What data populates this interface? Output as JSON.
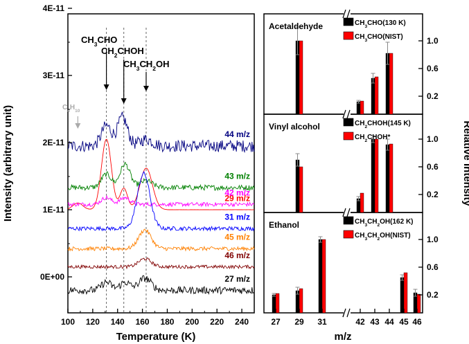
{
  "chart_data": [
    {
      "type": "line",
      "xlabel": "Temperature (K)",
      "ylabel": "Intensity (arbitrary unit)",
      "xlim": [
        100,
        250
      ],
      "xticks": [
        "100",
        "120",
        "140",
        "160",
        "180",
        "200",
        "220",
        "240"
      ],
      "yticks": [
        "0E+00",
        "1E-11",
        "2E-11",
        "3E-11",
        "4E-11"
      ],
      "reference_lines_K": [
        131,
        145,
        163
      ],
      "annotations": [
        {
          "label": "CH",
          "sub": "3",
          "rest": "CHO",
          "x": 131
        },
        {
          "label": "CH",
          "sub": "2",
          "rest": "CHOH",
          "x": 145
        },
        {
          "label": "CH",
          "sub": "3",
          "rest": "CH",
          "sub2": "2",
          "rest2": "OH",
          "x": 163
        },
        {
          "label": "C",
          "sub": "4",
          "rest": "H",
          "sub2": "10",
          "rest2": "",
          "x": 108
        }
      ],
      "series": [
        {
          "name": "29 m/z",
          "color": "#ff0000",
          "baseline": 1.0,
          "noise": 0.0012,
          "peaks": [
            [
              108,
              0.1,
              4
            ],
            [
              131,
              1.05,
              4
            ],
            [
              145,
              0.32,
              3
            ],
            [
              163,
              0.62,
              5
            ]
          ]
        },
        {
          "name": "44 m/z",
          "color": "#000080",
          "baseline": 1.95,
          "noise": 0.09,
          "peaks": [
            [
              131,
              0.3,
              4
            ],
            [
              144,
              0.42,
              4
            ],
            [
              163,
              0.1,
              5
            ]
          ]
        },
        {
          "name": "43 m/z",
          "color": "#008000",
          "baseline": 1.33,
          "noise": 0.04,
          "peaks": [
            [
              131,
              0.2,
              4
            ],
            [
              146,
              0.35,
              4
            ],
            [
              163,
              0.1,
              5
            ]
          ]
        },
        {
          "name": "42 m/z",
          "color": "#ff00ff",
          "baseline": 1.08,
          "noise": 0.03,
          "peaks": [
            [
              131,
              0.1,
              4
            ],
            [
              146,
              0.1,
              4
            ]
          ]
        },
        {
          "name": "31 m/z",
          "color": "#0000ff",
          "baseline": 0.72,
          "noise": 0.03,
          "peaks": [
            [
              161,
              0.82,
              5
            ]
          ]
        },
        {
          "name": "45 m/z",
          "color": "#ff8000",
          "baseline": 0.42,
          "noise": 0.03,
          "peaks": [
            [
              162,
              0.28,
              5
            ]
          ]
        },
        {
          "name": "46 m/z",
          "color": "#800000",
          "baseline": 0.15,
          "noise": 0.025,
          "peaks": [
            [
              162,
              0.12,
              5
            ]
          ]
        },
        {
          "name": "27 m/z",
          "color": "#000000",
          "baseline": -0.2,
          "noise": 0.055,
          "peaks": [
            [
              131,
              0.12,
              4
            ],
            [
              146,
              0.12,
              4
            ],
            [
              162,
              0.18,
              5
            ]
          ]
        }
      ]
    },
    {
      "type": "bar",
      "xlabel": "m/z",
      "ylabel": "Relative Intensity",
      "categories": [
        "27",
        "29",
        "31",
        "42",
        "43",
        "44",
        "45",
        "46"
      ],
      "yticks": [
        "0.2",
        "0.6",
        "1.0",
        "1.4"
      ],
      "ylim": [
        0,
        1.4
      ],
      "panels": [
        {
          "title": "Acetaldehyde",
          "legend": [
            {
              "text": "CH",
              "sub": "3",
              "rest": "CHO(130 K)",
              "color": "#000000"
            },
            {
              "text": "CH",
              "sub": "3",
              "rest": "CHO(NIST)",
              "color": "#ff0000"
            }
          ],
          "series": [
            {
              "color": "#000000",
              "values": {
                "29": 1.0,
                "42": 0.12,
                "43": 0.46,
                "44": 0.82
              },
              "errors": {
                "29": 0.2,
                "42": 0.02,
                "43": 0.07,
                "44": 0.16
              }
            },
            {
              "color": "#ff0000",
              "values": {
                "29": 1.0,
                "42": 0.13,
                "43": 0.48,
                "44": 0.82
              }
            }
          ]
        },
        {
          "title": "Vinyl alcohol",
          "legend": [
            {
              "text": "CH",
              "sub": "2",
              "rest": "CHOH(145 K)",
              "color": "#000000"
            },
            {
              "text": "CH",
              "sub": "2",
              "rest": "CHOH*",
              "color": "#ff0000"
            }
          ],
          "series": [
            {
              "color": "#000000",
              "values": {
                "29": 0.7,
                "42": 0.14,
                "43": 1.0,
                "44": 0.92
              },
              "errors": {
                "29": 0.09,
                "42": 0.03,
                "43": 0.05,
                "44": 0.08
              }
            },
            {
              "color": "#ff0000",
              "values": {
                "29": 0.6,
                "42": 0.22,
                "43": 1.0,
                "44": 0.93
              }
            }
          ]
        },
        {
          "title": "Ethanol",
          "legend": [
            {
              "text": "CH",
              "sub": "3",
              "rest": "CH",
              "sub2": "2",
              "rest2": "OH(162 K)",
              "color": "#000000"
            },
            {
              "text": "CH",
              "sub": "3",
              "rest": "CH",
              "sub2": "2",
              "rest2": "OH(NIST)",
              "color": "#ff0000"
            }
          ],
          "series": [
            {
              "color": "#000000",
              "values": {
                "27": 0.2,
                "29": 0.26,
                "31": 1.0,
                "45": 0.45,
                "46": 0.23
              },
              "errors": {
                "27": 0.02,
                "29": 0.05,
                "31": 0.04,
                "45": 0.04,
                "46": 0.05
              }
            },
            {
              "color": "#ff0000",
              "values": {
                "27": 0.22,
                "29": 0.29,
                "31": 1.0,
                "45": 0.52,
                "46": 0.21
              }
            }
          ]
        }
      ]
    }
  ]
}
